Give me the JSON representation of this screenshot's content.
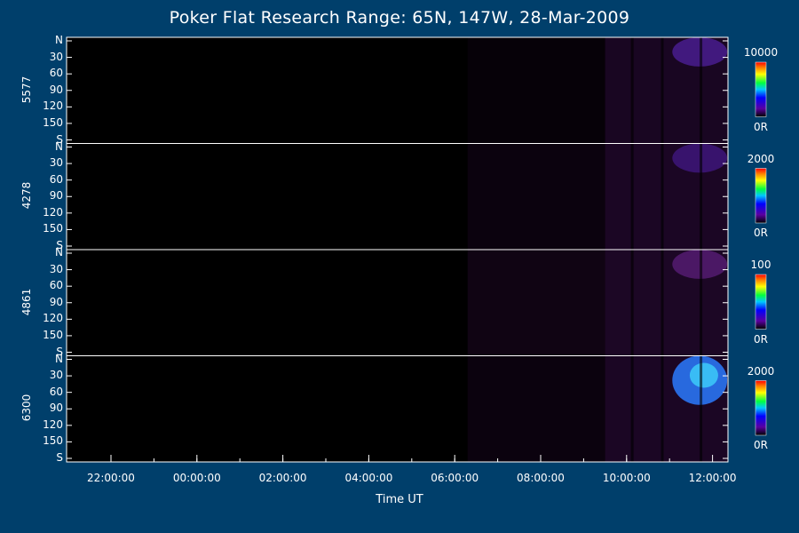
{
  "chart_data": {
    "type": "heatmap",
    "title": "Poker Flat Research Range: 65N, 147W, 28-Mar-2009",
    "xlabel": "Time UT",
    "xticks": [
      "22:00:00",
      "00:00:00",
      "02:00:00",
      "04:00:00",
      "06:00:00",
      "08:00:00",
      "10:00:00",
      "12:00:00"
    ],
    "yticks": [
      "N",
      "30",
      "60",
      "90",
      "120",
      "150",
      "S"
    ],
    "panels": [
      {
        "wavelength": "5577",
        "colorbar_max": "10000",
        "colorbar_min": "0R",
        "intensity": "brightest near N around 11:00–12:30 UT",
        "peak_color": "#6a2bd9"
      },
      {
        "wavelength": "4278",
        "colorbar_max": "2000",
        "colorbar_min": "0R",
        "intensity": "faint emission near N after 09:30 UT",
        "peak_color": "#5520b5"
      },
      {
        "wavelength": "4861",
        "colorbar_max": "100",
        "colorbar_min": "0R",
        "intensity": "noisy low emission after 06:20 UT",
        "peak_color": "#7a2aa5"
      },
      {
        "wavelength": "6300",
        "colorbar_max": "2000",
        "colorbar_min": "0R",
        "intensity": "bright blue near N, 11:00–13:20 UT",
        "peak_color": "#2a7bff"
      }
    ],
    "colors": {
      "background": "#003f6b",
      "plot_background": "#000000"
    }
  }
}
